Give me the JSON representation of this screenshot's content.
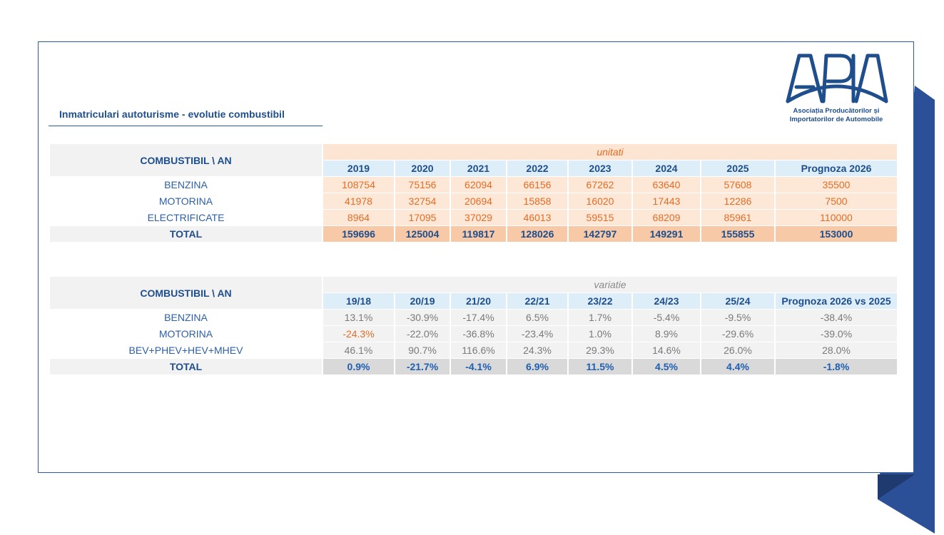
{
  "title": "Inmatriculari autoturisme - evolutie combustibil",
  "logo": {
    "line1": "Asociația Producătorilor și",
    "line2": "Importatorilor de Automobile",
    "color": "#1f4e8c"
  },
  "units_table": {
    "corner": "COMBUSTIBIL  \\ AN",
    "group_label": "unitati",
    "columns": [
      "2019",
      "2020",
      "2021",
      "2022",
      "2023",
      "2024",
      "2025",
      "Prognoza 2026"
    ],
    "rows": [
      {
        "label": "BENZINA",
        "values": [
          "108754",
          "75156",
          "62094",
          "66156",
          "67262",
          "63640",
          "57608",
          "35500"
        ]
      },
      {
        "label": "MOTORINA",
        "values": [
          "41978",
          "32754",
          "20694",
          "15858",
          "16020",
          "17443",
          "12286",
          "7500"
        ]
      },
      {
        "label": "ELECTRIFICATE",
        "values": [
          "8964",
          "17095",
          "37029",
          "46013",
          "59515",
          "68209",
          "85961",
          "110000"
        ]
      },
      {
        "label": "TOTAL",
        "values": [
          "159696",
          "125004",
          "119817",
          "128026",
          "142797",
          "149291",
          "155855",
          "153000"
        ]
      }
    ]
  },
  "variation_table": {
    "corner": "COMBUSTIBIL  \\ AN",
    "group_label": "variatie",
    "columns": [
      "19/18",
      "20/19",
      "21/20",
      "22/21",
      "23/22",
      "24/23",
      "25/24",
      "Prognoza 2026 vs 2025"
    ],
    "rows": [
      {
        "label": "BENZINA",
        "values": [
          "13.1%",
          "-30.9%",
          "-17.4%",
          "6.5%",
          "1.7%",
          "-5.4%",
          "-9.5%",
          "-38.4%"
        ]
      },
      {
        "label": "MOTORINA",
        "values": [
          "-24.3%",
          "-22.0%",
          "-36.8%",
          "-23.4%",
          "1.0%",
          "8.9%",
          "-29.6%",
          "-39.0%"
        ]
      },
      {
        "label": "BEV+PHEV+HEV+MHEV",
        "values": [
          "46.1%",
          "90.7%",
          "116.6%",
          "24.3%",
          "29.3%",
          "14.6%",
          "26.0%",
          "28.0%"
        ]
      },
      {
        "label": "TOTAL",
        "values": [
          "0.9%",
          "-21.7%",
          "-4.1%",
          "6.9%",
          "11.5%",
          "4.5%",
          "4.4%",
          "-1.8%"
        ]
      }
    ]
  },
  "colors": {
    "accent_blue": "#1f4e8c",
    "orange": "#e46c24",
    "decoration": "#2b5097"
  }
}
